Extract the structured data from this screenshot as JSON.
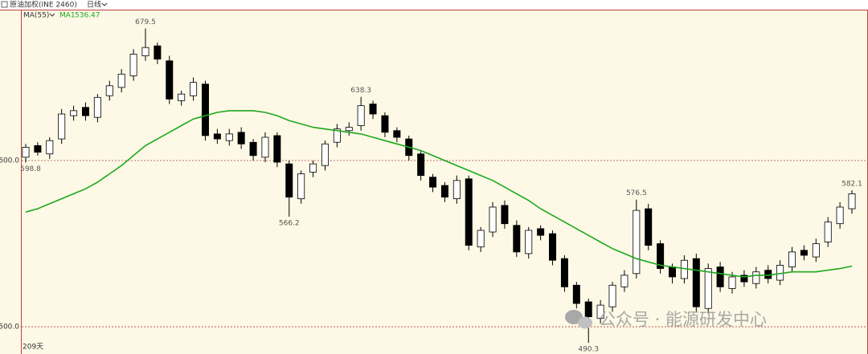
{
  "chart_data": {
    "type": "candlestick",
    "title": "原油加权(INE 2460)",
    "period": "日线",
    "indicator": "MA(55)",
    "span_label": "209天",
    "watermark": "公众号 · 能源研发中心",
    "up_color": "#ffffff",
    "down_color": "#000000",
    "ylim": [
      483.6,
      690.8
    ],
    "yticks": [
      {
        "value": 600,
        "label": "600.0"
      },
      {
        "value": 500,
        "label": "500.0"
      }
    ],
    "grid": true,
    "open": [
      602,
      609,
      604,
      613,
      627,
      632,
      626,
      639,
      644,
      651,
      663,
      669,
      660,
      636,
      639,
      646,
      616,
      612,
      617,
      611,
      602,
      615,
      598,
      577,
      593,
      597,
      611,
      618,
      621,
      634,
      627,
      618,
      613,
      604,
      590,
      585,
      577,
      589,
      548,
      557,
      573,
      561,
      544,
      559,
      556,
      541,
      525,
      515,
      505,
      512,
      524,
      532,
      571,
      550,
      536,
      529,
      541,
      511,
      536,
      523,
      531,
      526,
      534,
      528,
      536,
      546,
      542,
      551,
      562,
      571
    ],
    "high": [
      610,
      611,
      614,
      631,
      633,
      635,
      640,
      648,
      655,
      667,
      679.5,
      671,
      663,
      642,
      650,
      648,
      619,
      619,
      620,
      613,
      617,
      617,
      600,
      594,
      600,
      612,
      622,
      623,
      638.3,
      636,
      629,
      620,
      615,
      606,
      592,
      587,
      591,
      591,
      560,
      575,
      576,
      564,
      560,
      561,
      558,
      543,
      527,
      517,
      516,
      527,
      534,
      576.5,
      574,
      552,
      538,
      543,
      544,
      538,
      539,
      533,
      534,
      536,
      537,
      540,
      548,
      549,
      553,
      566,
      575,
      582.1
    ],
    "low": [
      598.8,
      603,
      601,
      610,
      624,
      624,
      623,
      636,
      641,
      648,
      660,
      658,
      634,
      633,
      636,
      612,
      610,
      609,
      607,
      600,
      599,
      596,
      566.2,
      574,
      590,
      594,
      608,
      615,
      618,
      625,
      614,
      611,
      600,
      588,
      581,
      575,
      574,
      546,
      545,
      554,
      559,
      542,
      541,
      552,
      537,
      521,
      511,
      490.3,
      502,
      509,
      521,
      529,
      546,
      532,
      526,
      526,
      509,
      508,
      521,
      520,
      524,
      523,
      526,
      525,
      533,
      540,
      539,
      548,
      559,
      568
    ],
    "close": [
      608,
      605,
      612,
      628,
      630,
      627,
      638,
      645,
      652,
      664,
      668,
      661,
      637,
      640,
      647,
      615,
      613,
      616,
      610,
      603,
      614,
      599,
      578,
      592,
      598,
      610,
      619,
      620,
      633,
      628,
      617,
      614,
      603,
      591,
      584,
      578,
      588,
      549,
      558,
      572,
      562,
      545,
      558,
      555,
      540,
      524,
      514,
      506,
      513,
      525,
      531,
      570,
      549,
      535,
      530,
      540,
      512,
      535,
      524,
      530,
      527,
      533,
      529,
      537,
      545,
      543,
      550,
      563,
      572,
      580
    ],
    "series": [
      {
        "name": "MA1",
        "color": "#1ea81e",
        "values": [
          569,
          571,
          574,
          577,
          580,
          583,
          587,
          592,
          597,
          603,
          609,
          613,
          617,
          621,
          625,
          627,
          629,
          630,
          630,
          630,
          629,
          627,
          624,
          622,
          620,
          619,
          618,
          617,
          616,
          614,
          612,
          610,
          608,
          606,
          603,
          600,
          597,
          594,
          591,
          588,
          584,
          580,
          576,
          571,
          567,
          563,
          559,
          555,
          551,
          547,
          544,
          541,
          539,
          537,
          536,
          535,
          534,
          533,
          532,
          531,
          530,
          531,
          531,
          532,
          533,
          533,
          533,
          534,
          535,
          536.47
        ]
      }
    ]
  }
}
